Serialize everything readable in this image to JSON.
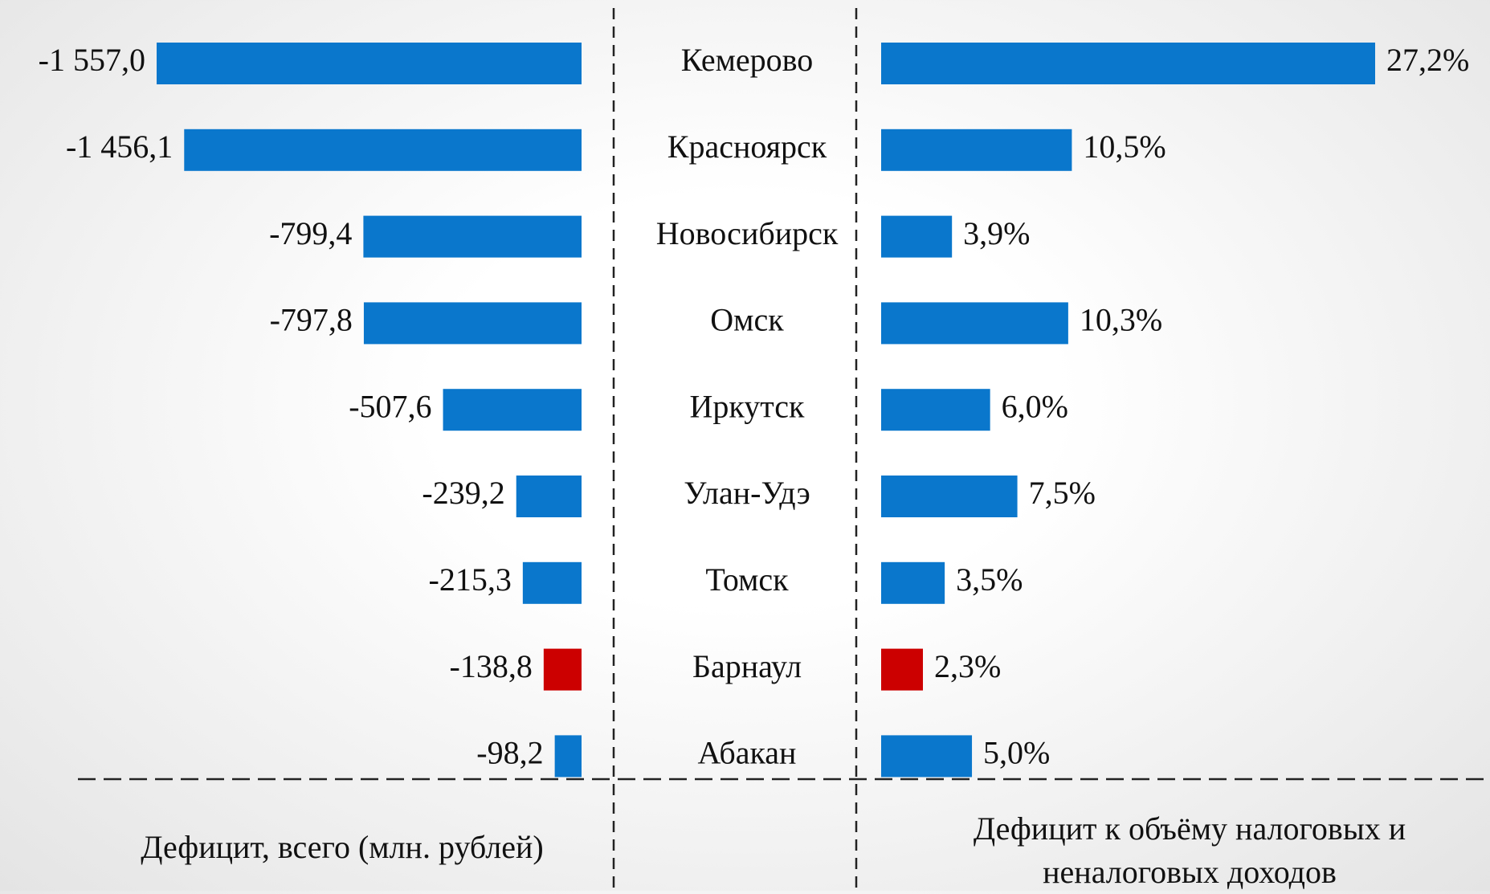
{
  "chart_data": {
    "type": "bar",
    "orientation": "horizontal",
    "categories": [
      "Кемерово",
      "Красноярск",
      "Новосибирск",
      "Омск",
      "Иркутск",
      "Улан-Удэ",
      "Томск",
      "Барнаул",
      "Абакан"
    ],
    "series": [
      {
        "name": "Дефицит, всего (млн. рублей)",
        "values": [
          -1557.0,
          -1456.1,
          -799.4,
          -797.8,
          -507.6,
          -239.2,
          -215.3,
          -138.8,
          -98.2
        ],
        "value_labels": [
          "-1 557,0",
          "-1 456,1",
          "-799,4",
          "-797,8",
          "-507,6",
          "-239,2",
          "-215,3",
          "-138,8",
          "-98,2"
        ],
        "colors": [
          "#0a77cc",
          "#0a77cc",
          "#0a77cc",
          "#0a77cc",
          "#0a77cc",
          "#0a77cc",
          "#0a77cc",
          "#cc0000",
          "#0a77cc"
        ],
        "xlim": [
          -1557.0,
          0
        ]
      },
      {
        "name": "Дефицит к объёму налоговых и неналоговых доходов",
        "values": [
          27.2,
          10.5,
          3.9,
          10.3,
          6.0,
          7.5,
          3.5,
          2.3,
          5.0
        ],
        "value_labels": [
          "27,2%",
          "10,5%",
          "3,9%",
          "10,3%",
          "6,0%",
          "7,5%",
          "3,5%",
          "2,3%",
          "5,0%"
        ],
        "colors": [
          "#0a77cc",
          "#0a77cc",
          "#0a77cc",
          "#0a77cc",
          "#0a77cc",
          "#0a77cc",
          "#0a77cc",
          "#cc0000",
          "#0a77cc"
        ],
        "xlim": [
          0,
          27.2
        ]
      }
    ]
  }
}
